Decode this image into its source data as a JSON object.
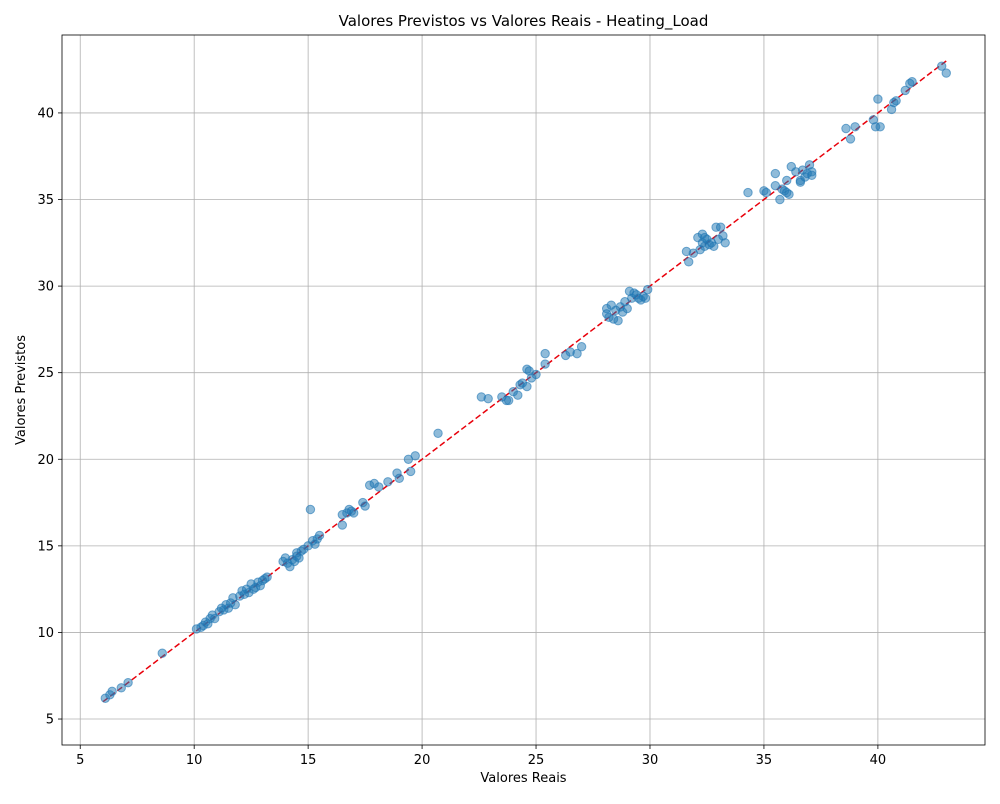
{
  "chart_data": {
    "type": "scatter",
    "title": "Valores Previstos vs Valores Reais - Heating_Load",
    "xlabel": "Valores Reais",
    "ylabel": "Valores Previstos",
    "xlim": [
      4.2,
      44.7
    ],
    "ylim": [
      3.5,
      44.5
    ],
    "xticks": [
      5,
      10,
      15,
      20,
      25,
      30,
      35,
      40
    ],
    "yticks": [
      5,
      10,
      15,
      20,
      25,
      30,
      35,
      40
    ],
    "grid": true,
    "colors": {
      "points": "#1f77b4",
      "reference_line": "#e8000b"
    },
    "reference_line": {
      "style": "dashed",
      "from": [
        6.0,
        6.0
      ],
      "to": [
        43.0,
        43.0
      ]
    },
    "series": [
      {
        "points": [
          [
            6.1,
            6.2
          ],
          [
            6.3,
            6.4
          ],
          [
            6.4,
            6.6
          ],
          [
            6.8,
            6.8
          ],
          [
            7.1,
            7.1
          ],
          [
            8.6,
            8.8
          ],
          [
            10.1,
            10.2
          ],
          [
            10.3,
            10.3
          ],
          [
            10.4,
            10.4
          ],
          [
            10.5,
            10.6
          ],
          [
            10.6,
            10.5
          ],
          [
            10.7,
            10.8
          ],
          [
            10.8,
            11.0
          ],
          [
            10.9,
            10.8
          ],
          [
            11.1,
            11.2
          ],
          [
            11.2,
            11.4
          ],
          [
            11.3,
            11.3
          ],
          [
            11.4,
            11.6
          ],
          [
            11.5,
            11.4
          ],
          [
            11.6,
            11.7
          ],
          [
            11.7,
            12.0
          ],
          [
            11.8,
            11.6
          ],
          [
            12.0,
            12.1
          ],
          [
            12.1,
            12.4
          ],
          [
            12.2,
            12.2
          ],
          [
            12.3,
            12.5
          ],
          [
            12.4,
            12.3
          ],
          [
            12.5,
            12.8
          ],
          [
            12.6,
            12.5
          ],
          [
            12.7,
            12.6
          ],
          [
            12.8,
            12.9
          ],
          [
            12.9,
            12.7
          ],
          [
            13.0,
            13.0
          ],
          [
            13.1,
            13.1
          ],
          [
            13.2,
            13.2
          ],
          [
            13.9,
            14.1
          ],
          [
            14.0,
            14.3
          ],
          [
            14.1,
            14.0
          ],
          [
            14.2,
            13.8
          ],
          [
            14.3,
            14.2
          ],
          [
            14.4,
            14.1
          ],
          [
            14.5,
            14.4
          ],
          [
            14.5,
            14.6
          ],
          [
            14.6,
            14.3
          ],
          [
            14.7,
            14.7
          ],
          [
            14.8,
            14.8
          ],
          [
            15.0,
            15.0
          ],
          [
            15.1,
            17.1
          ],
          [
            15.2,
            15.3
          ],
          [
            15.3,
            15.1
          ],
          [
            15.4,
            15.4
          ],
          [
            15.5,
            15.6
          ],
          [
            16.5,
            16.8
          ],
          [
            16.5,
            16.2
          ],
          [
            16.7,
            16.9
          ],
          [
            16.8,
            17.1
          ],
          [
            16.9,
            17.0
          ],
          [
            17.0,
            16.9
          ],
          [
            17.4,
            17.5
          ],
          [
            17.5,
            17.3
          ],
          [
            17.7,
            18.5
          ],
          [
            17.9,
            18.6
          ],
          [
            18.1,
            18.4
          ],
          [
            18.5,
            18.7
          ],
          [
            18.9,
            19.2
          ],
          [
            19.0,
            18.9
          ],
          [
            19.4,
            20.0
          ],
          [
            19.5,
            19.3
          ],
          [
            19.7,
            20.2
          ],
          [
            20.7,
            21.5
          ],
          [
            22.6,
            23.6
          ],
          [
            22.9,
            23.5
          ],
          [
            23.5,
            23.6
          ],
          [
            23.7,
            23.4
          ],
          [
            23.8,
            23.4
          ],
          [
            24.0,
            23.9
          ],
          [
            24.2,
            23.7
          ],
          [
            24.3,
            24.3
          ],
          [
            24.4,
            24.4
          ],
          [
            24.6,
            24.2
          ],
          [
            24.6,
            25.2
          ],
          [
            24.7,
            25.1
          ],
          [
            24.8,
            24.7
          ],
          [
            25.0,
            24.9
          ],
          [
            25.4,
            26.1
          ],
          [
            25.4,
            25.5
          ],
          [
            26.3,
            26.0
          ],
          [
            26.5,
            26.2
          ],
          [
            26.8,
            26.1
          ],
          [
            27.0,
            26.5
          ],
          [
            28.1,
            28.7
          ],
          [
            28.1,
            28.4
          ],
          [
            28.2,
            28.2
          ],
          [
            28.3,
            28.9
          ],
          [
            28.4,
            28.1
          ],
          [
            28.5,
            28.6
          ],
          [
            28.6,
            28.0
          ],
          [
            28.7,
            28.8
          ],
          [
            28.8,
            28.5
          ],
          [
            28.9,
            29.1
          ],
          [
            29.0,
            28.7
          ],
          [
            29.1,
            29.7
          ],
          [
            29.2,
            29.3
          ],
          [
            29.3,
            29.6
          ],
          [
            29.4,
            29.5
          ],
          [
            29.5,
            29.3
          ],
          [
            29.6,
            29.2
          ],
          [
            29.7,
            29.4
          ],
          [
            29.8,
            29.3
          ],
          [
            29.9,
            29.8
          ],
          [
            31.6,
            32.0
          ],
          [
            31.7,
            31.4
          ],
          [
            31.9,
            31.9
          ],
          [
            32.1,
            32.8
          ],
          [
            32.2,
            32.1
          ],
          [
            32.3,
            33.0
          ],
          [
            32.3,
            32.5
          ],
          [
            32.4,
            32.8
          ],
          [
            32.4,
            32.3
          ],
          [
            32.5,
            32.7
          ],
          [
            32.6,
            32.4
          ],
          [
            32.7,
            32.5
          ],
          [
            32.8,
            32.3
          ],
          [
            32.9,
            33.4
          ],
          [
            33.0,
            32.7
          ],
          [
            33.1,
            33.4
          ],
          [
            33.2,
            32.9
          ],
          [
            33.3,
            32.5
          ],
          [
            34.3,
            35.4
          ],
          [
            35.0,
            35.5
          ],
          [
            35.1,
            35.4
          ],
          [
            35.5,
            35.8
          ],
          [
            35.5,
            36.5
          ],
          [
            35.7,
            35.0
          ],
          [
            35.8,
            35.6
          ],
          [
            35.9,
            35.5
          ],
          [
            36.0,
            36.1
          ],
          [
            36.0,
            35.4
          ],
          [
            36.1,
            35.3
          ],
          [
            36.2,
            36.9
          ],
          [
            36.4,
            36.6
          ],
          [
            36.6,
            36.1
          ],
          [
            36.6,
            36.0
          ],
          [
            36.7,
            36.7
          ],
          [
            36.8,
            36.3
          ],
          [
            36.9,
            36.5
          ],
          [
            37.0,
            37.0
          ],
          [
            37.1,
            36.6
          ],
          [
            37.1,
            36.4
          ],
          [
            38.6,
            39.1
          ],
          [
            38.8,
            38.5
          ],
          [
            39.0,
            39.2
          ],
          [
            39.8,
            39.6
          ],
          [
            39.9,
            39.2
          ],
          [
            40.0,
            40.8
          ],
          [
            40.1,
            39.2
          ],
          [
            40.6,
            40.2
          ],
          [
            40.7,
            40.6
          ],
          [
            40.8,
            40.7
          ],
          [
            41.2,
            41.3
          ],
          [
            41.4,
            41.7
          ],
          [
            41.5,
            41.8
          ],
          [
            42.8,
            42.7
          ],
          [
            43.0,
            42.3
          ]
        ]
      }
    ]
  }
}
